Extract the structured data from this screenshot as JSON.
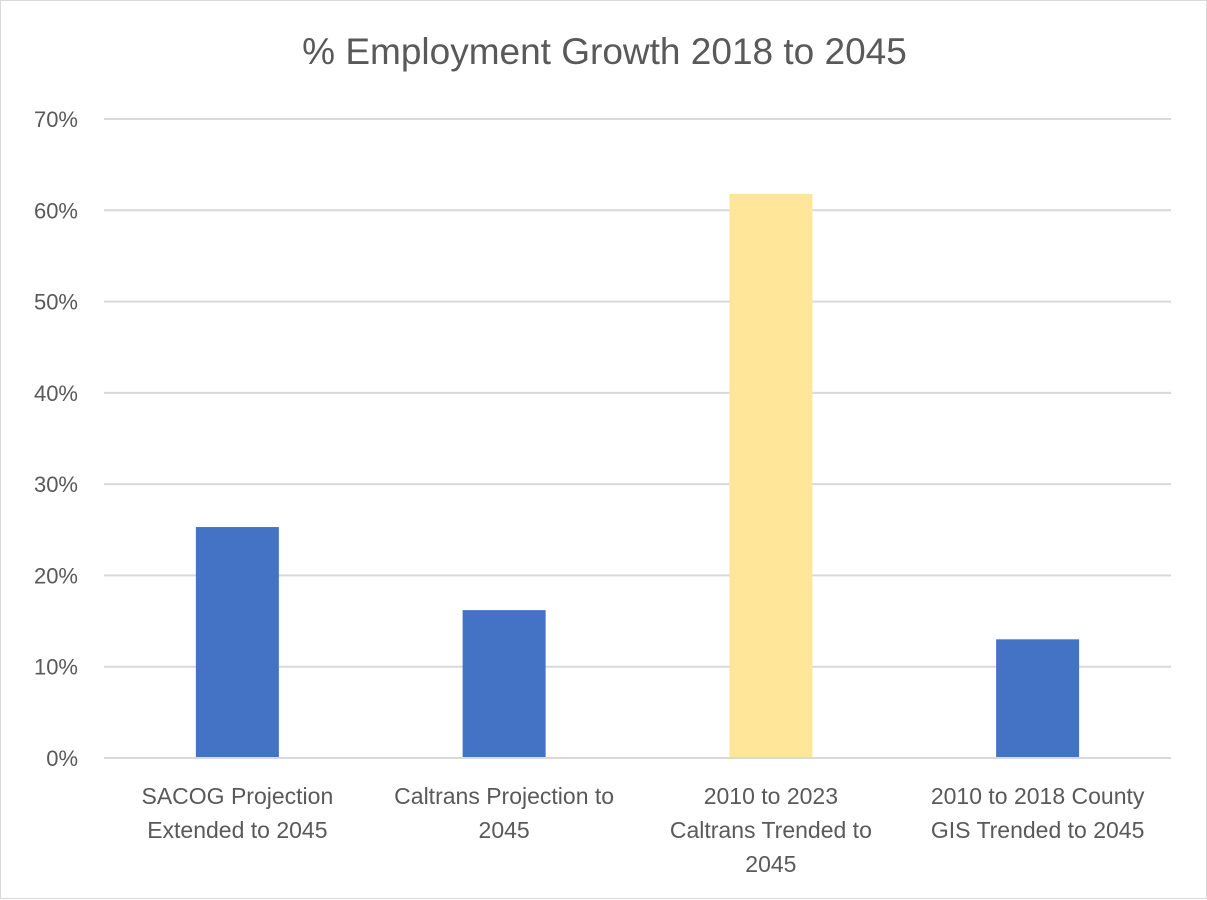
{
  "chart_data": {
    "type": "bar",
    "title": "% Employment Growth 2018 to 2045",
    "categories": [
      [
        "SACOG Projection",
        "Extended to 2045"
      ],
      [
        "Caltrans Projection to",
        "2045"
      ],
      [
        "2010 to 2023",
        "Caltrans Trended to",
        "2045"
      ],
      [
        "2010 to 2018 County",
        "GIS Trended to 2045"
      ]
    ],
    "values": [
      25.3,
      16.2,
      61.8,
      13.0
    ],
    "bar_colors": [
      "#4472C4",
      "#4472C4",
      "#FFE699",
      "#4472C4"
    ],
    "ylim": [
      0,
      70
    ],
    "yticks": [
      {
        "value": 0,
        "label": "0%"
      },
      {
        "value": 10,
        "label": "10%"
      },
      {
        "value": 20,
        "label": "20%"
      },
      {
        "value": 30,
        "label": "30%"
      },
      {
        "value": 40,
        "label": "40%"
      },
      {
        "value": 50,
        "label": "50%"
      },
      {
        "value": 60,
        "label": "60%"
      },
      {
        "value": 70,
        "label": "70%"
      }
    ],
    "grid": true,
    "gridline_color": "#d9d9d9"
  }
}
